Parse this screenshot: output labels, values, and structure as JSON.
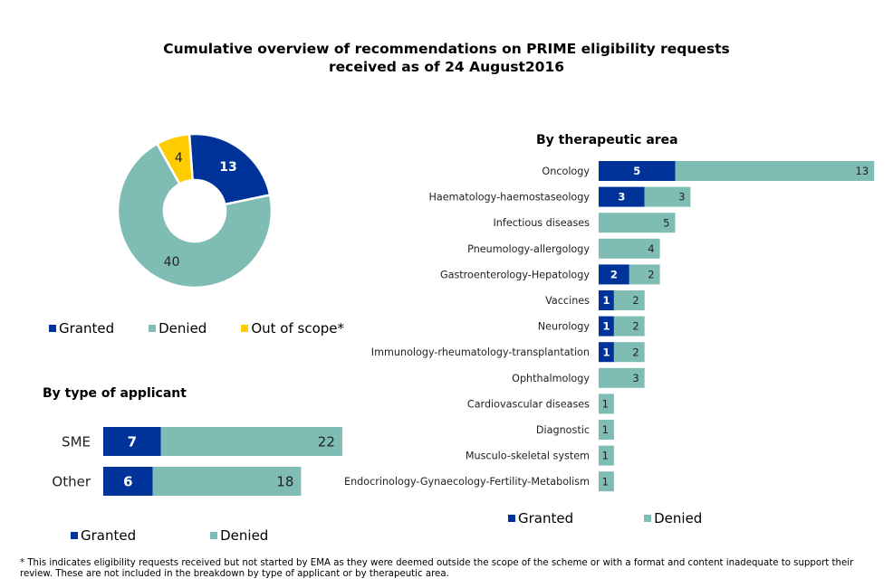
{
  "title_line1": "Cumulative overview of recommendations on PRIME eligibility requests",
  "title_line2": "received as of 24 August2016",
  "colors": {
    "granted": "#003399",
    "denied": "#7fbcb3",
    "out_of_scope": "#ffcc00"
  },
  "chart_data": [
    {
      "id": "overall",
      "type": "pie",
      "subtype": "donut",
      "labels": [
        "Granted",
        "Denied",
        "Out of scope*"
      ],
      "values": [
        13,
        40,
        4
      ],
      "legend_position": "bottom"
    },
    {
      "id": "by_therapeutic_area",
      "type": "bar",
      "orientation": "horizontal",
      "stacked": true,
      "title": "By therapeutic area",
      "categories": [
        "Oncology",
        "Haematology-haemostaseology",
        "Infectious diseases",
        "Pneumology-allergology",
        "Gastroenterology-Hepatology",
        "Vaccines",
        "Neurology",
        "Immunology-rheumatology-transplantation",
        "Ophthalmology",
        "Cardiovascular diseases",
        "Diagnostic",
        "Musculo-skeletal system",
        "Endocrinology-Gynaecology-Fertility-Metabolism"
      ],
      "series": [
        {
          "name": "Granted",
          "values": [
            5,
            3,
            0,
            0,
            2,
            1,
            1,
            1,
            0,
            0,
            0,
            0,
            0
          ]
        },
        {
          "name": "Denied",
          "values": [
            13,
            3,
            5,
            4,
            2,
            2,
            2,
            2,
            3,
            1,
            1,
            1,
            1
          ]
        }
      ],
      "xlim": [
        0,
        18
      ],
      "legend_position": "bottom"
    },
    {
      "id": "by_type_of_applicant",
      "type": "bar",
      "orientation": "horizontal",
      "stacked": true,
      "title": "By type of applicant",
      "categories": [
        "SME",
        "Other"
      ],
      "series": [
        {
          "name": "Granted",
          "values": [
            7,
            6
          ]
        },
        {
          "name": "Denied",
          "values": [
            22,
            18
          ]
        }
      ],
      "xlim": [
        0,
        29
      ],
      "legend_position": "bottom"
    }
  ],
  "legends": {
    "donut": [
      "Granted",
      "Denied",
      "Out of scope*"
    ],
    "applicant": [
      "Granted",
      "Denied"
    ],
    "area": [
      "Granted",
      "Denied"
    ]
  },
  "footnote": "* This indicates eligibility requests received but not started by EMA as they were deemed outside the scope of the scheme or with a format and content inadequate to support their review. These are not included in the breakdown by type of applicant or by therapeutic area."
}
